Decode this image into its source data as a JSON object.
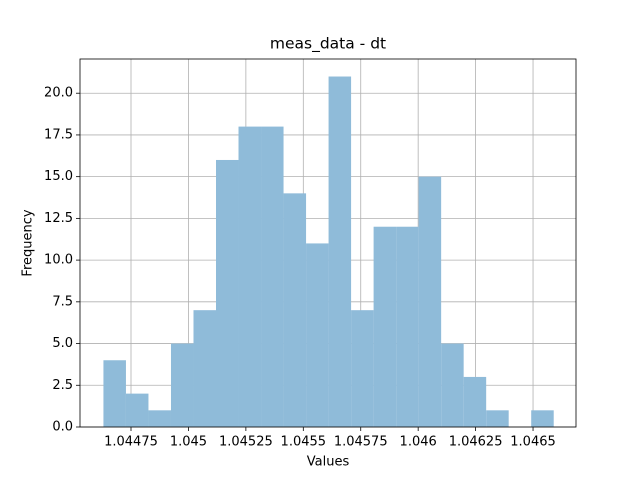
{
  "chart_data": {
    "type": "histogram",
    "title": "meas_data - dt",
    "xlabel": "Values",
    "ylabel": "Frequency",
    "bins": [
      1.04463,
      1.044728,
      1.044826,
      1.044924,
      1.045022,
      1.04512,
      1.045218,
      1.045316,
      1.045414,
      1.045512,
      1.04561,
      1.045708,
      1.045806,
      1.045904,
      1.046002,
      1.0461,
      1.046198,
      1.046296,
      1.046394,
      1.046492,
      1.04659
    ],
    "values": [
      4,
      2,
      1,
      5,
      7,
      16,
      18,
      18,
      14,
      11,
      21,
      7,
      12,
      12,
      15,
      5,
      3,
      1,
      0,
      1
    ],
    "color": "#8fbbd9",
    "xlim": [
      1.044528,
      1.046687
    ],
    "xticks": [
      1.04475,
      1.045,
      1.04525,
      1.0455,
      1.04575,
      1.046,
      1.04625,
      1.0465
    ],
    "ylim": [
      0,
      22.05
    ],
    "yticks": [
      {
        "value": 0,
        "label": "0.0"
      },
      {
        "value": 2.5,
        "label": "2.5"
      },
      {
        "value": 5,
        "label": "5.0"
      },
      {
        "value": 7.5,
        "label": "7.5"
      },
      {
        "value": 10,
        "label": "10.0"
      },
      {
        "value": 12.5,
        "label": "12.5"
      },
      {
        "value": 15,
        "label": "15.0"
      },
      {
        "value": 17.5,
        "label": "17.5"
      },
      {
        "value": 20,
        "label": "20.0"
      }
    ],
    "grid": true
  }
}
